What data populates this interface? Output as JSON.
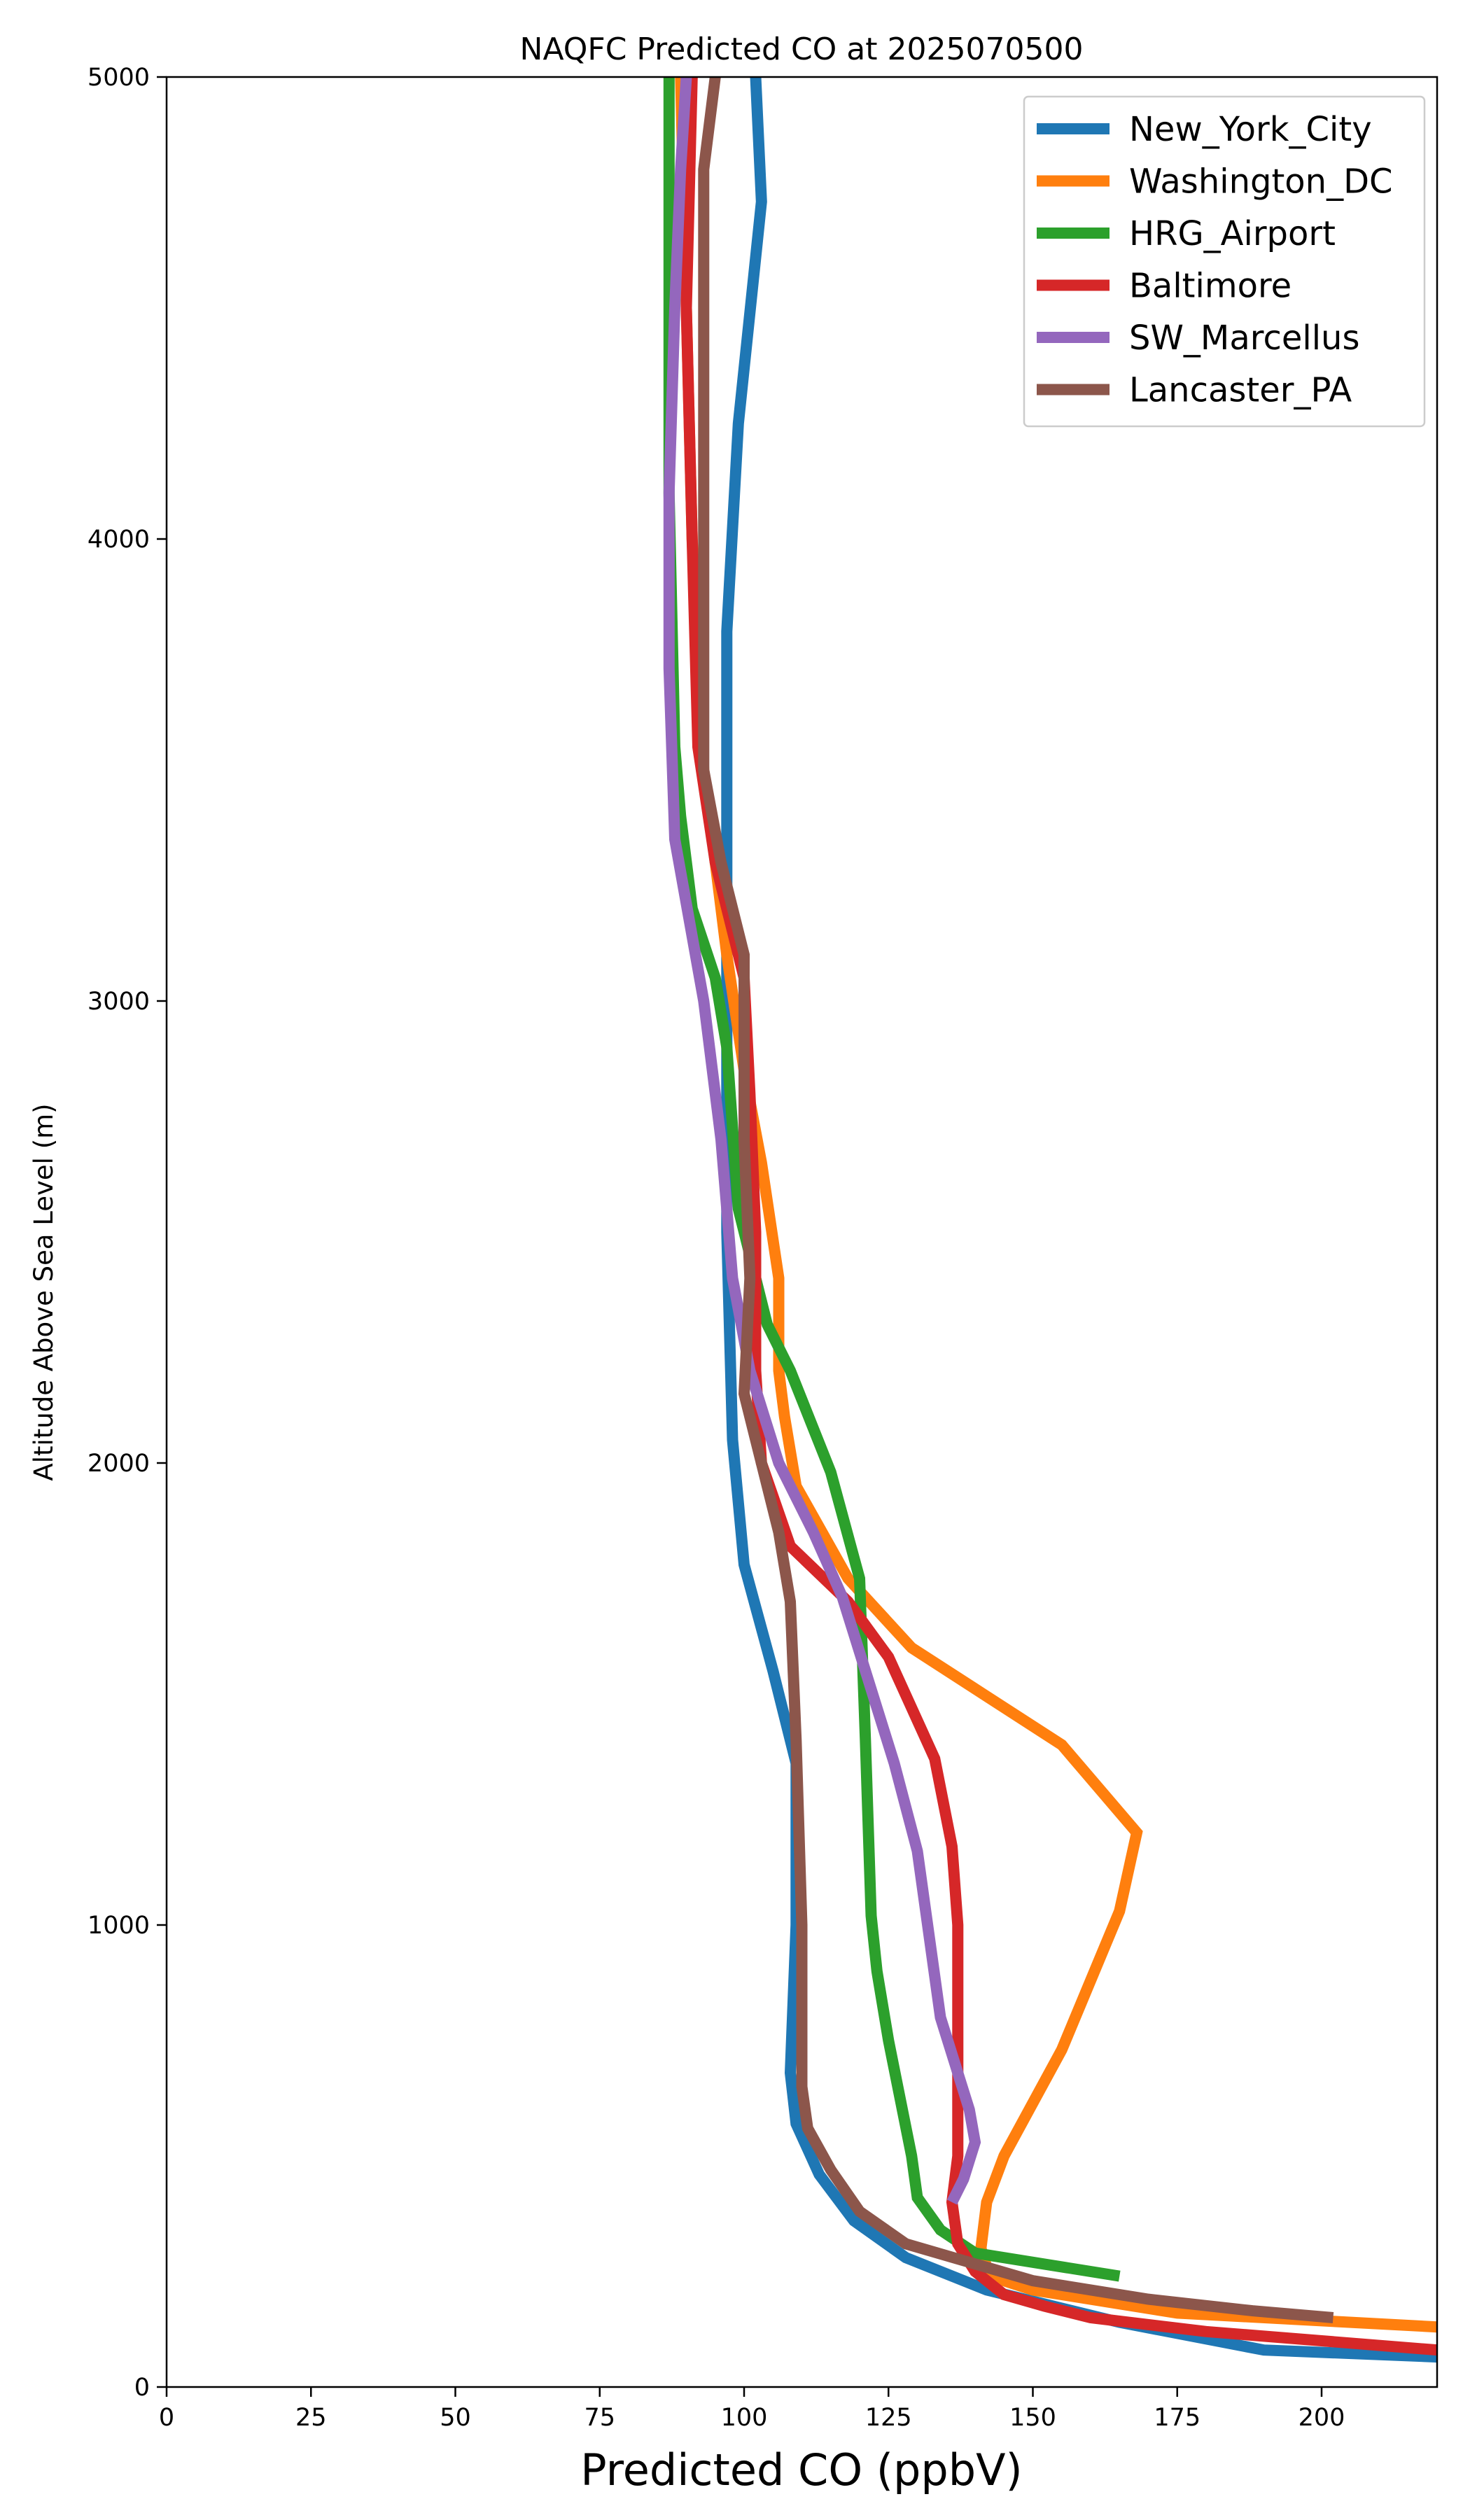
{
  "chart_data": {
    "type": "line",
    "title": "NAQFC Predicted CO at 2025070500",
    "xlabel": "Predicted CO (ppbV)",
    "ylabel": "Altitude Above Sea Level (m)",
    "xlim": [
      0,
      220
    ],
    "ylim": [
      0,
      5000
    ],
    "xticks": [
      0,
      25,
      50,
      75,
      100,
      125,
      150,
      175,
      200
    ],
    "yticks": [
      0,
      1000,
      2000,
      3000,
      4000,
      5000
    ],
    "grid": false,
    "legend_position": "top-right",
    "series": [
      {
        "name": "New_York_City",
        "color": "#1f77b4",
        "points": [
          [
            220,
            65
          ],
          [
            190,
            80
          ],
          [
            165,
            140
          ],
          [
            142,
            210
          ],
          [
            128,
            280
          ],
          [
            119,
            360
          ],
          [
            113,
            460
          ],
          [
            109,
            570
          ],
          [
            108,
            680
          ],
          [
            109,
            1000
          ],
          [
            109,
            1350
          ],
          [
            107,
            1450
          ],
          [
            105,
            1550
          ],
          [
            100,
            1780
          ],
          [
            98,
            2050
          ],
          [
            97,
            2500
          ],
          [
            97,
            2900
          ],
          [
            97,
            3400
          ],
          [
            97,
            3800
          ],
          [
            99,
            4250
          ],
          [
            103,
            4730
          ],
          [
            102,
            5000
          ]
        ]
      },
      {
        "name": "Washington_DC",
        "color": "#ff7f0e",
        "points": [
          [
            220,
            130
          ],
          [
            175,
            160
          ],
          [
            165,
            180
          ],
          [
            150,
            210
          ],
          [
            145,
            230
          ],
          [
            142,
            260
          ],
          [
            141,
            300
          ],
          [
            142,
            400
          ],
          [
            145,
            500
          ],
          [
            155,
            730
          ],
          [
            165,
            1030
          ],
          [
            168,
            1200
          ],
          [
            155,
            1390
          ],
          [
            129,
            1600
          ],
          [
            118,
            1750
          ],
          [
            109,
            1950
          ],
          [
            107,
            2100
          ],
          [
            106,
            2200
          ],
          [
            106,
            2400
          ],
          [
            103,
            2650
          ],
          [
            100,
            2850
          ],
          [
            97,
            3100
          ],
          [
            93,
            3500
          ],
          [
            91,
            4000
          ],
          [
            90,
            4500
          ],
          [
            89,
            5000
          ]
        ]
      },
      {
        "name": "HRG_Airport",
        "color": "#2ca02c",
        "points": [
          [
            165,
            240
          ],
          [
            140,
            290
          ],
          [
            134,
            340
          ],
          [
            130,
            410
          ],
          [
            129,
            500
          ],
          [
            125,
            750
          ],
          [
            123,
            900
          ],
          [
            122,
            1020
          ],
          [
            121,
            1400
          ],
          [
            120,
            1750
          ],
          [
            115,
            1980
          ],
          [
            108,
            2200
          ],
          [
            104,
            2300
          ],
          [
            99,
            2550
          ],
          [
            97,
            2900
          ],
          [
            95,
            3050
          ],
          [
            91,
            3200
          ],
          [
            89,
            3400
          ],
          [
            88,
            3550
          ],
          [
            87,
            4100
          ],
          [
            87,
            4500
          ],
          [
            87,
            5000
          ]
        ]
      },
      {
        "name": "Baltimore",
        "color": "#d62728",
        "points": [
          [
            220,
            80
          ],
          [
            200,
            100
          ],
          [
            180,
            120
          ],
          [
            160,
            150
          ],
          [
            152,
            175
          ],
          [
            145,
            200
          ],
          [
            140,
            250
          ],
          [
            137,
            310
          ],
          [
            136,
            400
          ],
          [
            137,
            500
          ],
          [
            137,
            1000
          ],
          [
            136,
            1170
          ],
          [
            133,
            1360
          ],
          [
            125,
            1580
          ],
          [
            118,
            1700
          ],
          [
            108,
            1820
          ],
          [
            103,
            2000
          ],
          [
            102,
            2200
          ],
          [
            102,
            2500
          ],
          [
            101,
            2800
          ],
          [
            100,
            3050
          ],
          [
            95,
            3300
          ],
          [
            92,
            3550
          ],
          [
            91,
            4000
          ],
          [
            90,
            4500
          ],
          [
            91,
            5000
          ]
        ]
      },
      {
        "name": "SW_Marcellus",
        "color": "#9467bd",
        "points": [
          [
            136,
            400
          ],
          [
            138,
            450
          ],
          [
            140,
            530
          ],
          [
            139,
            600
          ],
          [
            134,
            800
          ],
          [
            130,
            1160
          ],
          [
            126,
            1350
          ],
          [
            121,
            1550
          ],
          [
            117,
            1710
          ],
          [
            112,
            1850
          ],
          [
            106,
            2000
          ],
          [
            101,
            2200
          ],
          [
            98,
            2400
          ],
          [
            96,
            2700
          ],
          [
            93,
            3000
          ],
          [
            88,
            3350
          ],
          [
            87,
            3720
          ],
          [
            87,
            4100
          ],
          [
            88,
            4500
          ],
          [
            89,
            4800
          ],
          [
            90,
            5000
          ]
        ]
      },
      {
        "name": "Lancaster_PA",
        "color": "#8c564b",
        "points": [
          [
            202,
            150
          ],
          [
            188,
            165
          ],
          [
            170,
            190
          ],
          [
            150,
            230
          ],
          [
            128,
            310
          ],
          [
            120,
            380
          ],
          [
            115,
            470
          ],
          [
            111,
            560
          ],
          [
            110,
            650
          ],
          [
            110,
            1000
          ],
          [
            109,
            1400
          ],
          [
            108,
            1700
          ],
          [
            106,
            1850
          ],
          [
            102,
            2050
          ],
          [
            100,
            2150
          ],
          [
            101,
            2400
          ],
          [
            100,
            2700
          ],
          [
            100,
            3100
          ],
          [
            96,
            3300
          ],
          [
            93,
            3500
          ],
          [
            93,
            3600
          ],
          [
            93,
            4000
          ],
          [
            93,
            4500
          ],
          [
            93,
            4800
          ],
          [
            95,
            5000
          ]
        ]
      }
    ]
  }
}
